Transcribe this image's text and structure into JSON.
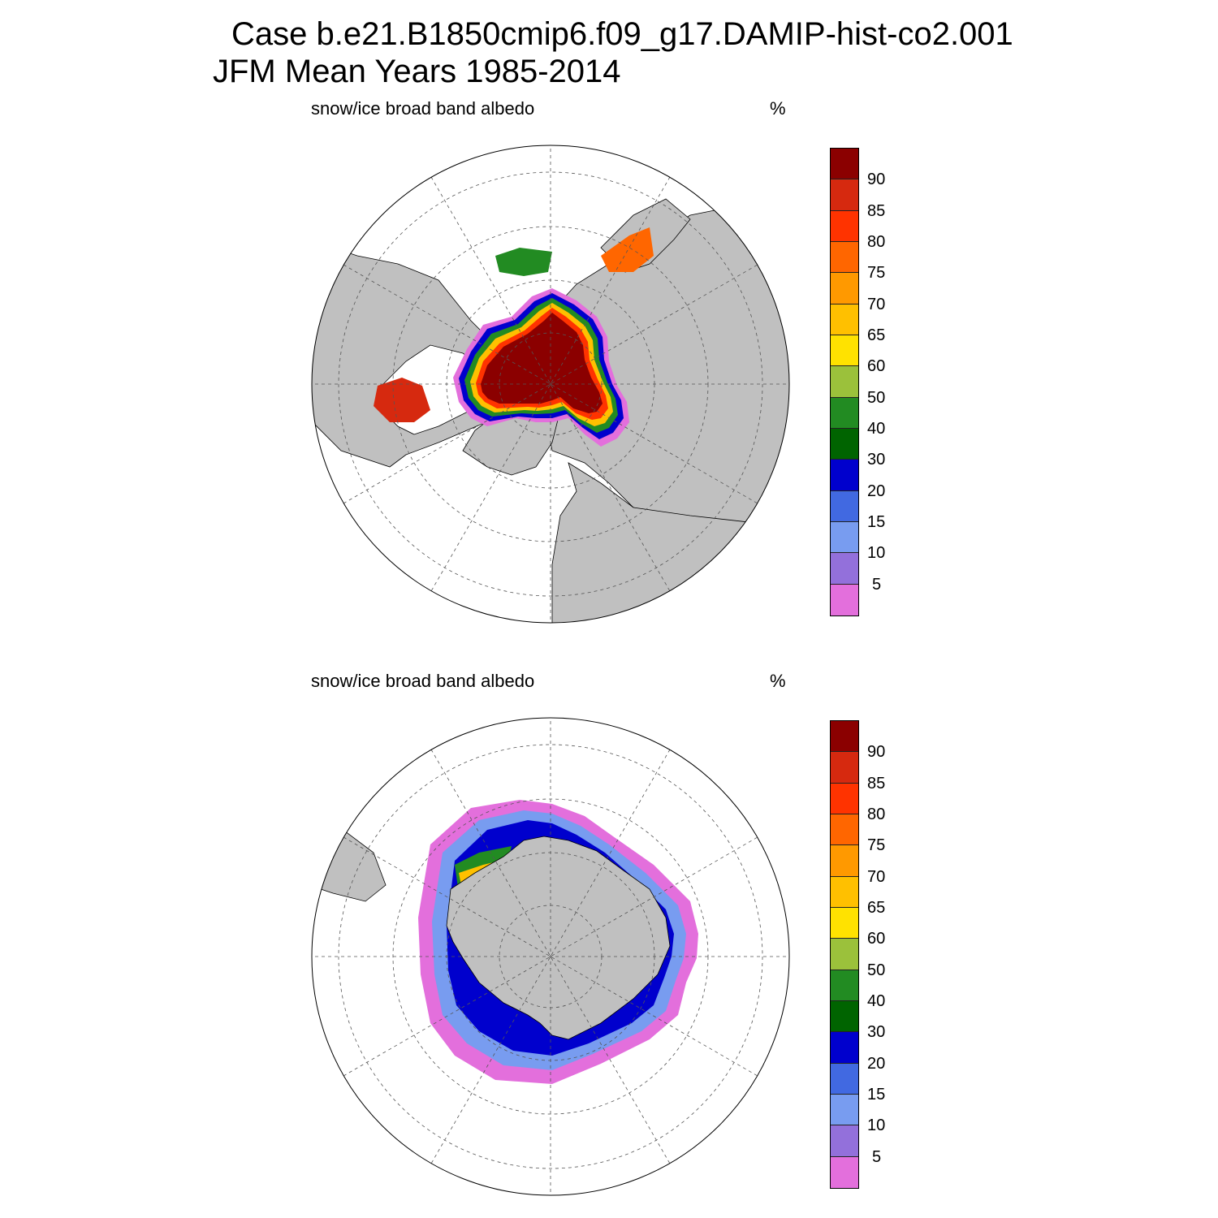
{
  "header": {
    "title_line1": "Case b.e21.B1850cmip6.f09_g17.DAMIP-hist-co2.001",
    "title_line2": "JFM Mean     Years 1985-2014"
  },
  "panels": [
    {
      "id": "north",
      "hemisphere": "north",
      "variable": "snow/ice broad band albedo",
      "units": "%"
    },
    {
      "id": "south",
      "hemisphere": "south",
      "variable": "snow/ice broad band albedo",
      "units": "%"
    }
  ],
  "colorbar": {
    "labels": [
      "90",
      "85",
      "80",
      "75",
      "70",
      "65",
      "60",
      "50",
      "40",
      "30",
      "20",
      "15",
      "10",
      "5"
    ],
    "colors_top_to_bottom": [
      "#8b0000",
      "#d6290f",
      "#ff3300",
      "#ff6600",
      "#ff9900",
      "#ffc000",
      "#ffe200",
      "#9bc13b",
      "#228b22",
      "#006400",
      "#0000cd",
      "#4169e1",
      "#789cf0",
      "#9370db",
      "#e36fdc"
    ]
  },
  "map_colors": {
    "land": "#c0c0c0",
    "ocean": "#ffffff",
    "grid": "#555555"
  }
}
